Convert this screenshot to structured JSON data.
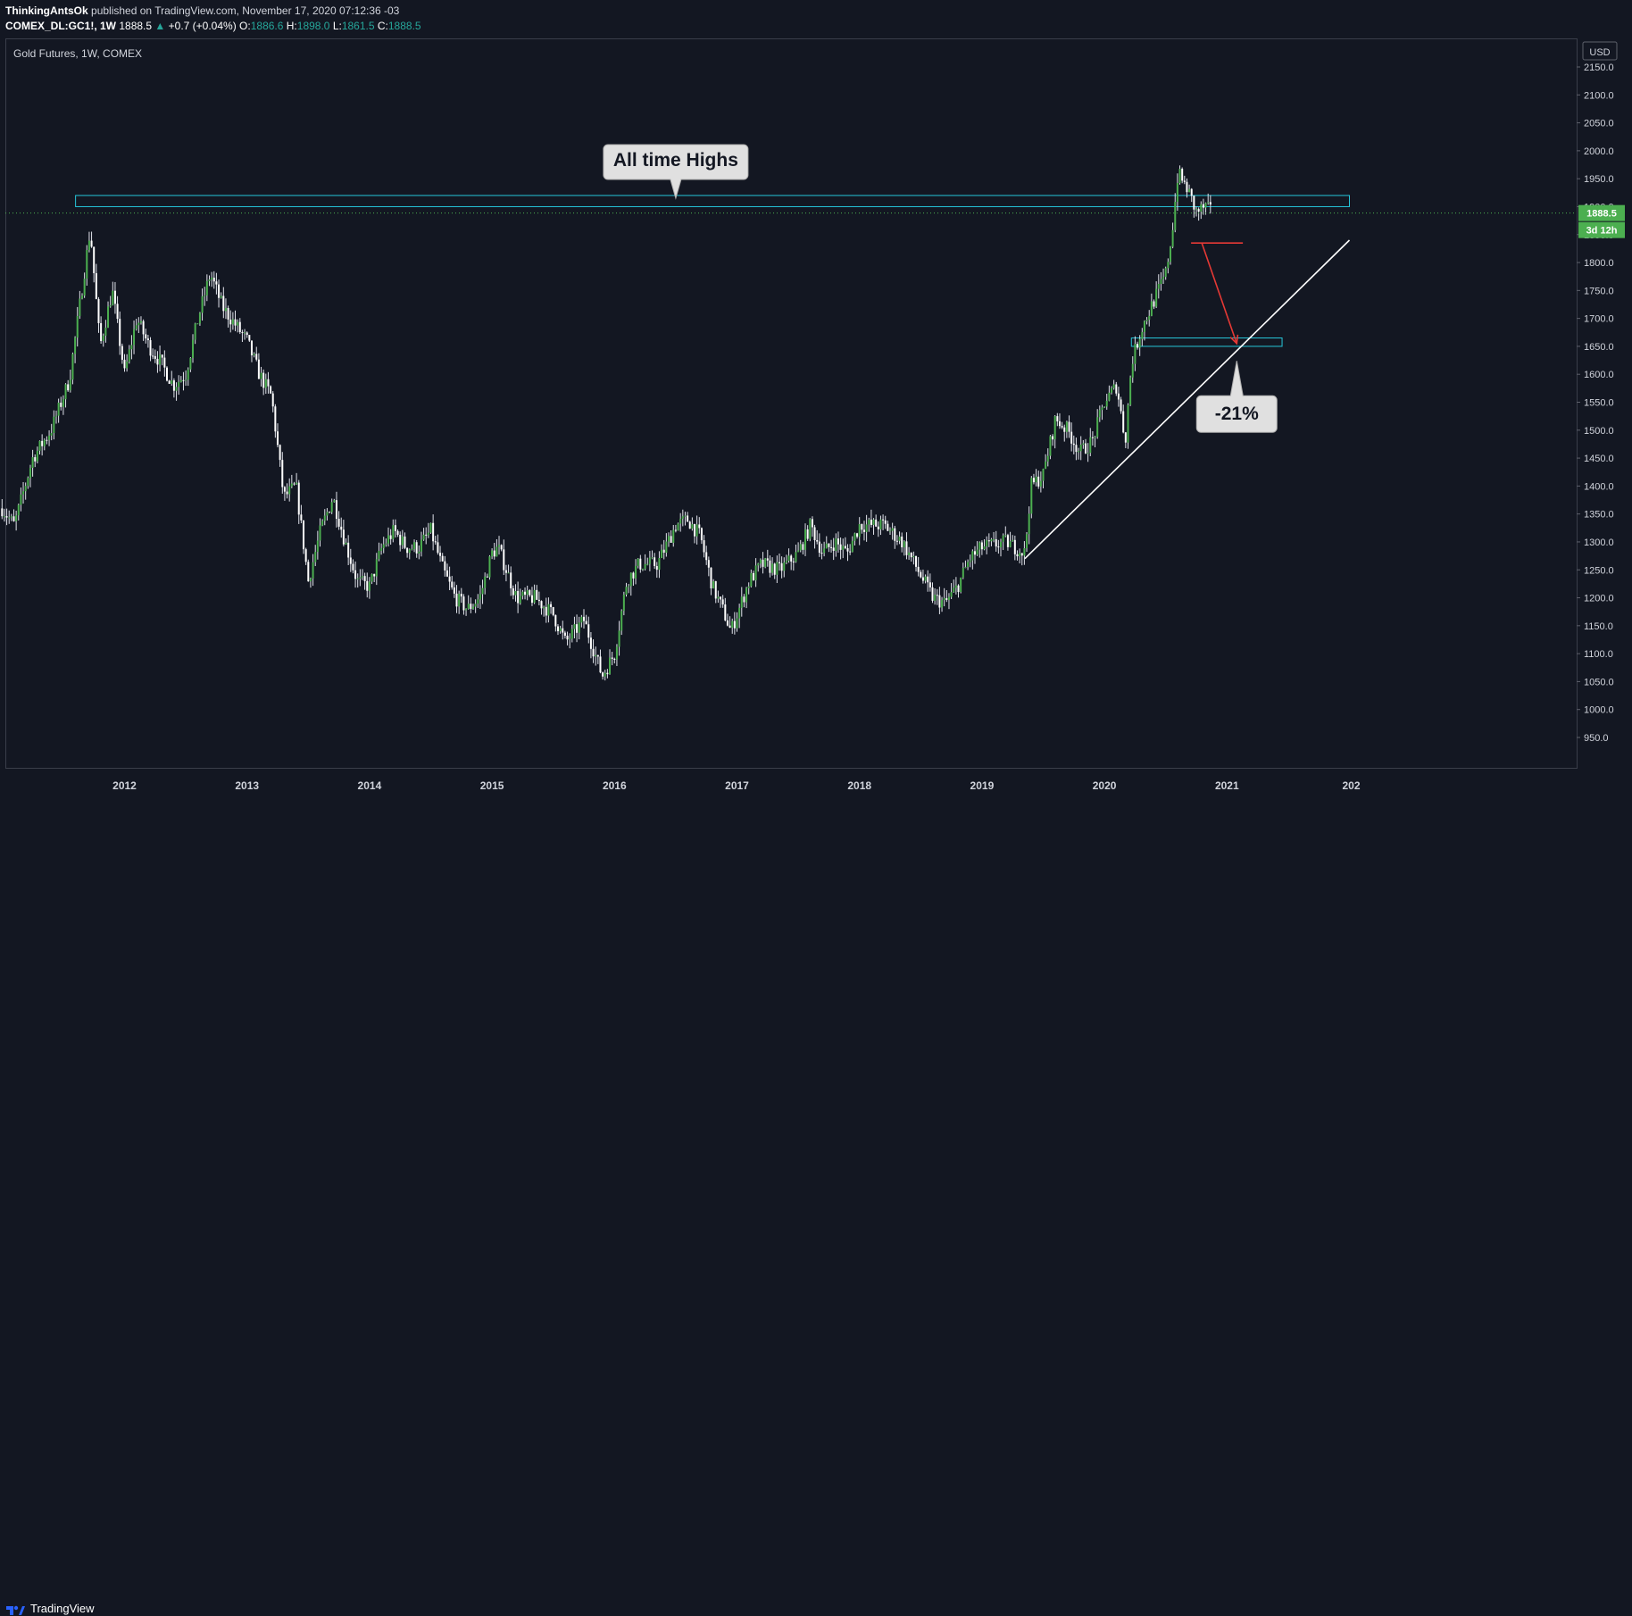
{
  "header": {
    "author": "ThinkingAntsOk",
    "published_text": "published on TradingView.com, November 17, 2020 07:12:36 -03",
    "symbol": "COMEX_DL:GC1!, 1W",
    "last_price": "1888.5",
    "change_arrow": "▲",
    "change": "+0.7 (+0.04%)",
    "open_label": "O:",
    "open": "1886.6",
    "high_label": "H:",
    "high": "1898.0",
    "low_label": "L:",
    "low": "1861.5",
    "close_label": "C:",
    "close": "1888.5"
  },
  "colors": {
    "background": "#131722",
    "up_candle": "#26a69a",
    "body_up": "#4caf50",
    "body_down": "#ffffff",
    "zone_outline": "#26c6da",
    "trendline": "#ffffff",
    "projection_arrow": "#e53935",
    "price_label_bg": "#4caf50"
  },
  "footer": {
    "brand": "TradingView",
    "logo_icon": "tradingview-logo-icon"
  },
  "chart_data": {
    "type": "line",
    "title": "Gold Futures, 1W, COMEX",
    "currency": "USD",
    "xlabel": "",
    "ylabel": "",
    "xlim": [
      2011.0,
      2022.0
    ],
    "ylim": [
      950,
      2150
    ],
    "y_scale": "linear",
    "grid": false,
    "x_ticks": [
      "2012",
      "2013",
      "2014",
      "2015",
      "2016",
      "2017",
      "2018",
      "2019",
      "2020",
      "2021",
      "202"
    ],
    "y_ticks": [
      "950.0",
      "1000.0",
      "1050.0",
      "1100.0",
      "1150.0",
      "1200.0",
      "1250.0",
      "1300.0",
      "1350.0",
      "1400.0",
      "1450.0",
      "1500.0",
      "1550.0",
      "1600.0",
      "1650.0",
      "1700.0",
      "1750.0",
      "1800.0",
      "1850.0",
      "1900.0",
      "1950.0",
      "2000.0",
      "2050.0",
      "2100.0",
      "2150.0"
    ],
    "series": [
      {
        "x": [
          2011.0,
          2011.1,
          2011.25,
          2011.4,
          2011.55,
          2011.67,
          2011.72,
          2011.8,
          2011.9,
          2012.0,
          2012.1,
          2012.2,
          2012.3,
          2012.4,
          2012.5,
          2012.6,
          2012.7,
          2012.8,
          2012.9,
          2013.0,
          2013.1,
          2013.2,
          2013.3,
          2013.4,
          2013.5,
          2013.6,
          2013.7,
          2013.8,
          2013.9,
          2014.0,
          2014.1,
          2014.2,
          2014.3,
          2014.4,
          2014.5,
          2014.6,
          2014.7,
          2014.8,
          2014.9,
          2015.0,
          2015.05,
          2015.2,
          2015.35,
          2015.5,
          2015.6,
          2015.75,
          2015.9,
          2015.95,
          2016.0,
          2016.1,
          2016.2,
          2016.35,
          2016.5,
          2016.6,
          2016.7,
          2016.8,
          2016.9,
          2016.95,
          2017.1,
          2017.2,
          2017.35,
          2017.5,
          2017.6,
          2017.7,
          2017.8,
          2017.9,
          2018.0,
          2018.1,
          2018.2,
          2018.35,
          2018.5,
          2018.6,
          2018.7,
          2018.8,
          2018.9,
          2019.0,
          2019.2,
          2019.35,
          2019.4,
          2019.5,
          2019.6,
          2019.7,
          2019.8,
          2019.9,
          2020.0,
          2020.1,
          2020.17,
          2020.22,
          2020.3,
          2020.4,
          2020.5,
          2020.55,
          2020.6,
          2020.68,
          2020.75,
          2020.82,
          2020.88
        ],
        "y": [
          1360,
          1330,
          1450,
          1500,
          1590,
          1780,
          1860,
          1650,
          1750,
          1600,
          1700,
          1650,
          1620,
          1580,
          1600,
          1700,
          1780,
          1720,
          1690,
          1660,
          1600,
          1560,
          1380,
          1400,
          1230,
          1320,
          1380,
          1300,
          1230,
          1220,
          1290,
          1320,
          1290,
          1290,
          1320,
          1250,
          1200,
          1180,
          1200,
          1280,
          1290,
          1200,
          1200,
          1170,
          1120,
          1160,
          1060,
          1080,
          1100,
          1230,
          1260,
          1260,
          1330,
          1340,
          1310,
          1220,
          1170,
          1140,
          1230,
          1260,
          1250,
          1280,
          1330,
          1280,
          1300,
          1280,
          1330,
          1330,
          1330,
          1300,
          1240,
          1200,
          1190,
          1220,
          1270,
          1290,
          1300,
          1280,
          1400,
          1420,
          1520,
          1500,
          1460,
          1480,
          1550,
          1580,
          1480,
          1620,
          1680,
          1730,
          1780,
          1850,
          1960,
          1930,
          1890,
          1900,
          1888
        ]
      }
    ],
    "zones": [
      {
        "name": "all-time-high-zone",
        "x_start": 2011.6,
        "x_end": 2022.0,
        "y_low": 1900,
        "y_high": 1920
      },
      {
        "name": "target-zone",
        "x_start": 2020.22,
        "x_end": 2021.45,
        "y_low": 1650,
        "y_high": 1665
      }
    ],
    "trendline": {
      "x": [
        2019.35,
        2022.0
      ],
      "y": [
        1270,
        1840
      ]
    },
    "projection": {
      "x": [
        2020.78,
        2021.08
      ],
      "y": [
        1835,
        1655
      ]
    },
    "annotations": [
      {
        "text": "All time Highs",
        "x": 2016.5,
        "y": 1955
      },
      {
        "text": "-21%",
        "x": 2021.08,
        "y": 1560
      }
    ],
    "last_price_label": "1888.5",
    "countdown_label": "3d 12h"
  }
}
